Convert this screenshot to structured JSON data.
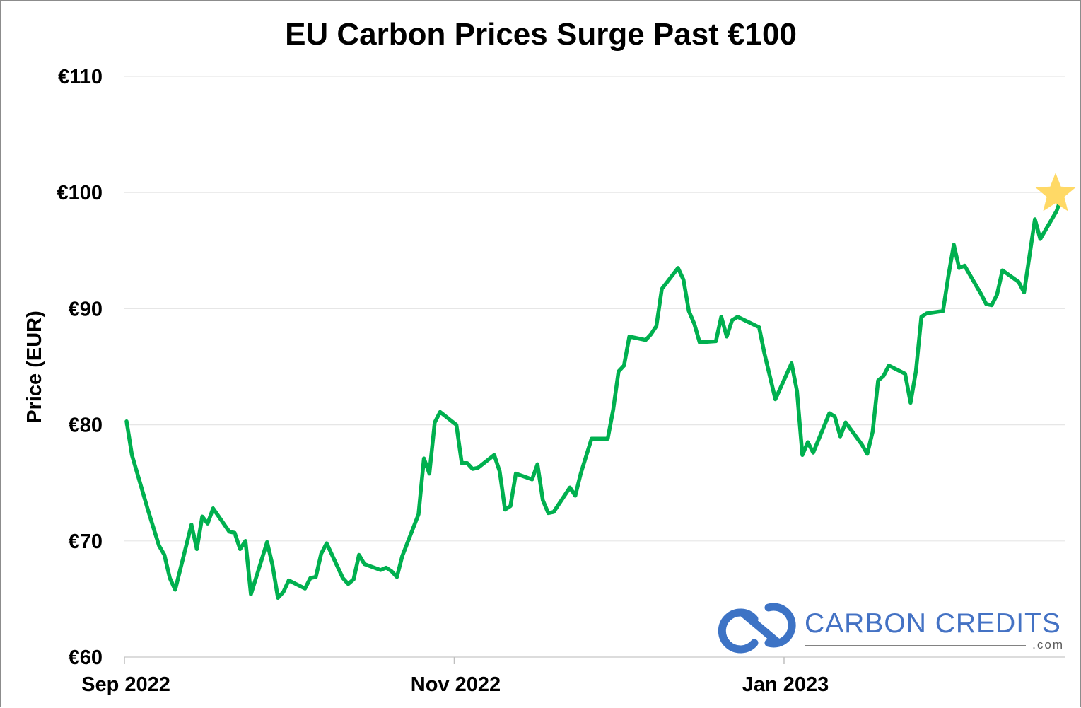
{
  "chart_data": {
    "type": "line",
    "title": "EU Carbon Prices Surge Past €100",
    "ylabel": "Price (EUR)",
    "xlabel": "",
    "ylim": [
      60,
      110
    ],
    "yticks": [
      60,
      70,
      80,
      90,
      100,
      110
    ],
    "ytick_labels": [
      "€60",
      "€70",
      "€80",
      "€90",
      "€100",
      "€110"
    ],
    "x_start": "2022-09-01",
    "x_end": "2023-02-21",
    "xticks": [
      {
        "date": "2022-09-01",
        "label": "Sep 2022"
      },
      {
        "date": "2022-11-01",
        "label": "Nov 2022"
      },
      {
        "date": "2023-01-01",
        "label": "Jan 2023"
      }
    ],
    "grid": "horizontal",
    "colors": {
      "line": "#00b04f",
      "star": "#ffd966",
      "grid": "#e6e6e6",
      "brand": "#3d73c5",
      "brand_text": "#4472c4",
      "brand_sub": "#595959"
    },
    "series": [
      {
        "color": "#00b04f",
        "points": [
          [
            "2022-09-01",
            80.3
          ],
          [
            "2022-09-02",
            77.4
          ],
          [
            "2022-09-05",
            72.6
          ],
          [
            "2022-09-06",
            71.1
          ],
          [
            "2022-09-07",
            69.6
          ],
          [
            "2022-09-08",
            68.8
          ],
          [
            "2022-09-09",
            66.8
          ],
          [
            "2022-09-10",
            65.8
          ],
          [
            "2022-09-13",
            71.4
          ],
          [
            "2022-09-14",
            69.3
          ],
          [
            "2022-09-15",
            72.1
          ],
          [
            "2022-09-16",
            71.5
          ],
          [
            "2022-09-17",
            72.8
          ],
          [
            "2022-09-20",
            70.8
          ],
          [
            "2022-09-21",
            70.7
          ],
          [
            "2022-09-22",
            69.3
          ],
          [
            "2022-09-23",
            70.0
          ],
          [
            "2022-09-24",
            65.4
          ],
          [
            "2022-09-27",
            69.9
          ],
          [
            "2022-09-28",
            67.9
          ],
          [
            "2022-09-29",
            65.1
          ],
          [
            "2022-09-30",
            65.6
          ],
          [
            "2022-10-01",
            66.6
          ],
          [
            "2022-10-04",
            65.9
          ],
          [
            "2022-10-05",
            66.8
          ],
          [
            "2022-10-06",
            66.9
          ],
          [
            "2022-10-07",
            68.9
          ],
          [
            "2022-10-08",
            69.8
          ],
          [
            "2022-10-11",
            66.8
          ],
          [
            "2022-10-12",
            66.3
          ],
          [
            "2022-10-13",
            66.7
          ],
          [
            "2022-10-14",
            68.8
          ],
          [
            "2022-10-15",
            68.0
          ],
          [
            "2022-10-18",
            67.5
          ],
          [
            "2022-10-19",
            67.7
          ],
          [
            "2022-10-20",
            67.4
          ],
          [
            "2022-10-21",
            66.9
          ],
          [
            "2022-10-22",
            68.7
          ],
          [
            "2022-10-25",
            72.3
          ],
          [
            "2022-10-26",
            77.1
          ],
          [
            "2022-10-27",
            75.8
          ],
          [
            "2022-10-28",
            80.2
          ],
          [
            "2022-10-29",
            81.1
          ],
          [
            "2022-11-01",
            80.0
          ],
          [
            "2022-11-02",
            76.7
          ],
          [
            "2022-11-03",
            76.7
          ],
          [
            "2022-11-04",
            76.2
          ],
          [
            "2022-11-05",
            76.3
          ],
          [
            "2022-11-08",
            77.4
          ],
          [
            "2022-11-09",
            76.0
          ],
          [
            "2022-11-10",
            72.7
          ],
          [
            "2022-11-11",
            73.0
          ],
          [
            "2022-11-12",
            75.8
          ],
          [
            "2022-11-15",
            75.3
          ],
          [
            "2022-11-16",
            76.6
          ],
          [
            "2022-11-17",
            73.5
          ],
          [
            "2022-11-18",
            72.4
          ],
          [
            "2022-11-19",
            72.5
          ],
          [
            "2022-11-22",
            74.6
          ],
          [
            "2022-11-23",
            73.9
          ],
          [
            "2022-11-24",
            75.8
          ],
          [
            "2022-11-26",
            78.8
          ],
          [
            "2022-11-29",
            78.8
          ],
          [
            "2022-11-30",
            81.3
          ],
          [
            "2022-12-01",
            84.6
          ],
          [
            "2022-12-02",
            85.1
          ],
          [
            "2022-12-03",
            87.6
          ],
          [
            "2022-12-06",
            87.3
          ],
          [
            "2022-12-07",
            87.8
          ],
          [
            "2022-12-08",
            88.5
          ],
          [
            "2022-12-09",
            91.7
          ],
          [
            "2022-12-12",
            93.5
          ],
          [
            "2022-12-13",
            92.5
          ],
          [
            "2022-12-14",
            89.8
          ],
          [
            "2022-12-15",
            88.7
          ],
          [
            "2022-12-16",
            87.1
          ],
          [
            "2022-12-19",
            87.2
          ],
          [
            "2022-12-20",
            89.3
          ],
          [
            "2022-12-21",
            87.6
          ],
          [
            "2022-12-22",
            89.0
          ],
          [
            "2022-12-23",
            89.3
          ],
          [
            "2022-12-27",
            88.4
          ],
          [
            "2022-12-28",
            86.1
          ],
          [
            "2022-12-30",
            82.2
          ],
          [
            "2023-01-02",
            85.3
          ],
          [
            "2023-01-03",
            82.9
          ],
          [
            "2023-01-04",
            77.4
          ],
          [
            "2023-01-05",
            78.5
          ],
          [
            "2023-01-06",
            77.6
          ],
          [
            "2023-01-09",
            81.0
          ],
          [
            "2023-01-10",
            80.7
          ],
          [
            "2023-01-11",
            79.0
          ],
          [
            "2023-01-12",
            80.2
          ],
          [
            "2023-01-15",
            78.3
          ],
          [
            "2023-01-16",
            77.5
          ],
          [
            "2023-01-17",
            79.4
          ],
          [
            "2023-01-18",
            83.8
          ],
          [
            "2023-01-19",
            84.2
          ],
          [
            "2023-01-20",
            85.1
          ],
          [
            "2023-01-23",
            84.4
          ],
          [
            "2023-01-24",
            81.9
          ],
          [
            "2023-01-25",
            84.6
          ],
          [
            "2023-01-26",
            89.3
          ],
          [
            "2023-01-27",
            89.6
          ],
          [
            "2023-01-30",
            89.8
          ],
          [
            "2023-01-31",
            92.8
          ],
          [
            "2023-02-01",
            95.5
          ],
          [
            "2023-02-02",
            93.5
          ],
          [
            "2023-02-03",
            93.7
          ],
          [
            "2023-02-06",
            91.3
          ],
          [
            "2023-02-07",
            90.4
          ],
          [
            "2023-02-08",
            90.3
          ],
          [
            "2023-02-09",
            91.2
          ],
          [
            "2023-02-10",
            93.3
          ],
          [
            "2023-02-13",
            92.3
          ],
          [
            "2023-02-14",
            91.4
          ],
          [
            "2023-02-16",
            97.7
          ],
          [
            "2023-02-17",
            96.0
          ],
          [
            "2023-02-20",
            98.4
          ],
          [
            "2023-02-21",
            99.7
          ]
        ]
      }
    ],
    "annotations": [
      {
        "type": "star",
        "date": "2023-02-21",
        "value": 100.0,
        "color": "#ffd966"
      }
    ]
  },
  "brand": {
    "name": "CARBON CREDITS",
    "sub": ".com",
    "logo_icon": "chain-link-icon"
  }
}
